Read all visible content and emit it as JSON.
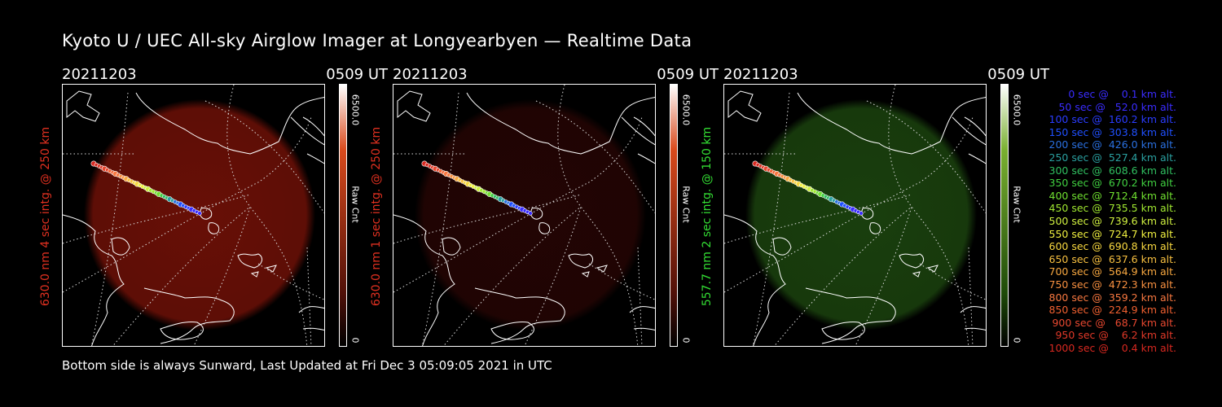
{
  "title": "Kyoto U / UEC All-sky Airglow Imager at Longyearbyen — Realtime Data",
  "footer": "Bottom side is always Sunward, Last Updated at Fri Dec  3 05:09:05 2021 in UTC",
  "panels": [
    {
      "date": "20211203",
      "time": "0509 UT",
      "ylabel": "630.0 nm 4 sec intg. @ 250 km",
      "label_color": "#e03020",
      "cbar_max": "6500.0",
      "cbar_unit": "Raw Cnt",
      "cbar_min": "0",
      "cbar_color": "#d94a1c",
      "glow": "red_strong"
    },
    {
      "date": "20211203",
      "time": "0509 UT",
      "ylabel": "630.0 nm 1 sec intg. @ 250 km",
      "label_color": "#e03020",
      "cbar_max": "6500.0",
      "cbar_unit": "Raw Cnt",
      "cbar_min": "0",
      "cbar_color": "#d94a1c",
      "glow": "red_faint"
    },
    {
      "date": "20211203",
      "time": "0509 UT",
      "ylabel": "557.7 nm 2 sec intg. @ 150 km",
      "label_color": "#33dd33",
      "cbar_max": "6500.0",
      "cbar_unit": "Raw Cnt",
      "cbar_min": "0",
      "cbar_color": "#5aa020",
      "glow": "green"
    }
  ],
  "legend": [
    {
      "text": "0 sec @    0.1 km alt.",
      "color": "#3a2cff"
    },
    {
      "text": "50 sec @   52.0 km alt.",
      "color": "#3a2cff"
    },
    {
      "text": "100 sec @  160.2 km alt.",
      "color": "#2a3cff"
    },
    {
      "text": "150 sec @  303.8 km alt.",
      "color": "#2050ff"
    },
    {
      "text": "200 sec @  426.0 km alt.",
      "color": "#2a70e0"
    },
    {
      "text": "250 sec @  527.4 km alt.",
      "color": "#2aa0a0"
    },
    {
      "text": "300 sec @  608.6 km alt.",
      "color": "#30c060"
    },
    {
      "text": "350 sec @  670.2 km alt.",
      "color": "#40d040"
    },
    {
      "text": "400 sec @  712.4 km alt.",
      "color": "#70e030"
    },
    {
      "text": "450 sec @  735.5 km alt.",
      "color": "#a0e830"
    },
    {
      "text": "500 sec @  739.6 km alt.",
      "color": "#d0f040"
    },
    {
      "text": "550 sec @  724.7 km alt.",
      "color": "#f0f040"
    },
    {
      "text": "600 sec @  690.8 km alt.",
      "color": "#f8d840"
    },
    {
      "text": "650 sec @  637.6 km alt.",
      "color": "#f8c040"
    },
    {
      "text": "700 sec @  564.9 km alt.",
      "color": "#f8a840"
    },
    {
      "text": "750 sec @  472.3 km alt.",
      "color": "#f89040"
    },
    {
      "text": "800 sec @  359.2 km alt.",
      "color": "#f87840"
    },
    {
      "text": "850 sec @  224.9 km alt.",
      "color": "#f06030"
    },
    {
      "text": "900 sec @   68.7 km alt.",
      "color": "#e84830"
    },
    {
      "text": "950 sec @    6.2 km alt.",
      "color": "#e03828"
    },
    {
      "text": "1000 sec @    0.4 km alt.",
      "color": "#d82820"
    }
  ]
}
